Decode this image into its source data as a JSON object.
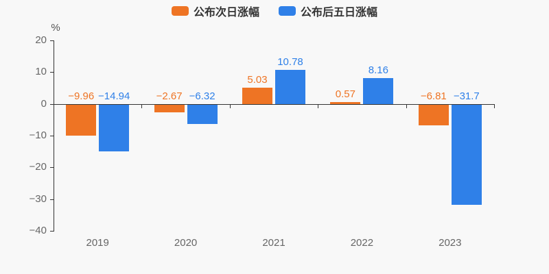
{
  "chart_data": {
    "type": "bar",
    "title": "",
    "categories": [
      "2019",
      "2020",
      "2021",
      "2022",
      "2023"
    ],
    "series": [
      {
        "name": "公布次日涨幅",
        "color": "#ee7424",
        "values": [
          -9.96,
          -2.67,
          5.03,
          0.57,
          -6.81
        ],
        "labels": [
          "−9.96",
          "−2.67",
          "5.03",
          "0.57",
          "−6.81"
        ]
      },
      {
        "name": "公布后五日涨幅",
        "color": "#2f80e8",
        "values": [
          -14.94,
          -6.32,
          10.78,
          8.16,
          -31.7
        ],
        "labels": [
          "−14.94",
          "−6.32",
          "10.78",
          "8.16",
          "−31.7"
        ]
      }
    ],
    "xlabel": "",
    "ylabel": "%",
    "ylim": [
      -40,
      20
    ],
    "y_ticks": [
      20,
      10,
      0,
      -10,
      -20,
      -30,
      -40
    ],
    "y_tick_labels": [
      "20",
      "10",
      "0",
      "−10",
      "−20",
      "−30",
      "−40"
    ],
    "legend_position": "top",
    "grid": false,
    "axis_color": "#333333",
    "tick_label_color": "#666666",
    "background_color": "#f8f8f8"
  }
}
